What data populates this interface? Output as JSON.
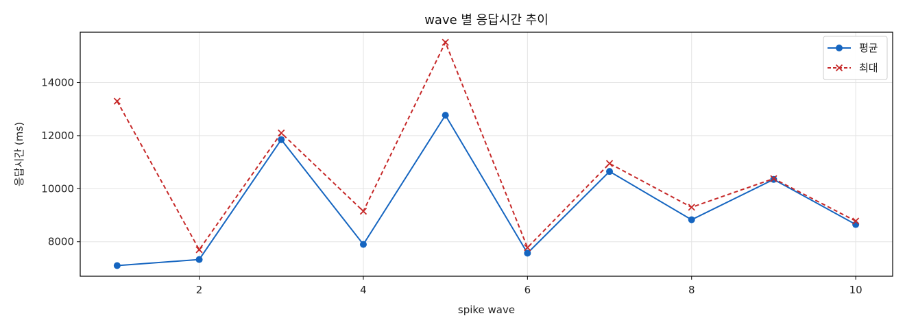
{
  "chart_data": {
    "type": "line",
    "title": "wave 별 응답시간 추이",
    "xlabel": "spike wave",
    "ylabel": "응답시간 (ms)",
    "x": [
      1,
      2,
      3,
      4,
      5,
      6,
      7,
      8,
      9,
      10
    ],
    "xlim": [
      0.55,
      10.45
    ],
    "ylim": [
      6700,
      15900
    ],
    "xticks": [
      2,
      4,
      6,
      8,
      10
    ],
    "yticks": [
      8000,
      10000,
      12000,
      14000
    ],
    "grid": true,
    "legend_position": "top-right",
    "series": [
      {
        "name": "평균",
        "color": "#1565c0",
        "line_style": "solid",
        "marker": "circle",
        "values": [
          7100,
          7330,
          11850,
          7900,
          12770,
          7570,
          10650,
          8830,
          10350,
          8650
        ]
      },
      {
        "name": "최대",
        "color": "#c62828",
        "line_style": "dashed",
        "marker": "x",
        "values": [
          13300,
          7700,
          12100,
          9150,
          15520,
          7780,
          10950,
          9300,
          10380,
          8780
        ]
      }
    ]
  }
}
